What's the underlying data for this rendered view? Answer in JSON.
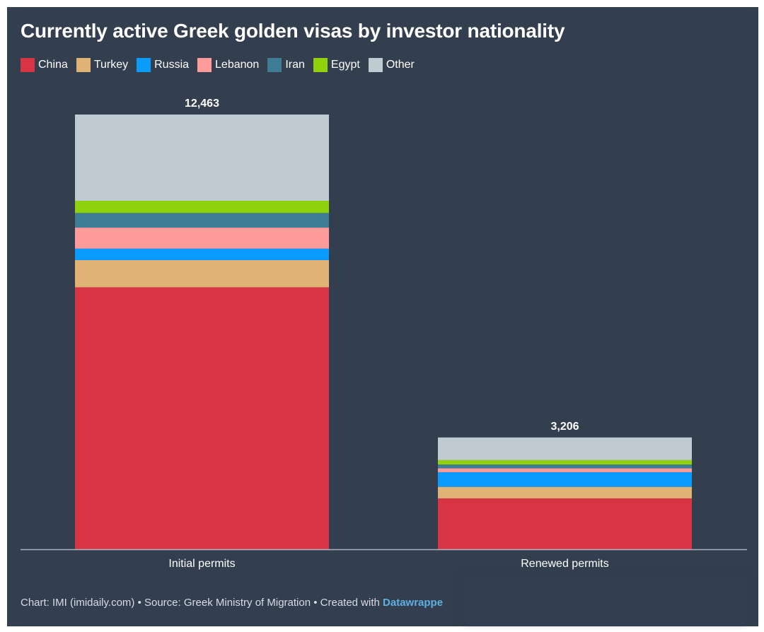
{
  "chart_data": {
    "type": "bar",
    "stacked": true,
    "title": "Currently active Greek golden visas by investor nationality",
    "categories": [
      "Initial permits",
      "Renewed permits"
    ],
    "totals": [
      12463,
      3206
    ],
    "total_labels": [
      "12,463",
      "3,206"
    ],
    "series": [
      {
        "name": "China",
        "color": "#d73444",
        "values": [
          7510,
          1460
        ]
      },
      {
        "name": "Turkey",
        "color": "#e0b274",
        "values": [
          780,
          330
        ]
      },
      {
        "name": "Russia",
        "color": "#0a9bff",
        "values": [
          330,
          420
        ]
      },
      {
        "name": "Lebanon",
        "color": "#ff9b9b",
        "values": [
          600,
          110
        ]
      },
      {
        "name": "Iran",
        "color": "#3f7d95",
        "values": [
          420,
          110
        ]
      },
      {
        "name": "Egypt",
        "color": "#8fd10a",
        "values": [
          350,
          126
        ]
      },
      {
        "name": "Other",
        "color": "#bfcbd0",
        "values": [
          2473,
          650
        ]
      }
    ],
    "ylim": [
      0,
      12463
    ],
    "legend_position": "top-left"
  },
  "footer": {
    "prefix": "Chart: IMI (imidaily.com) • Source: Greek Ministry of Migration • Created with ",
    "brand": "Datawrappe"
  }
}
